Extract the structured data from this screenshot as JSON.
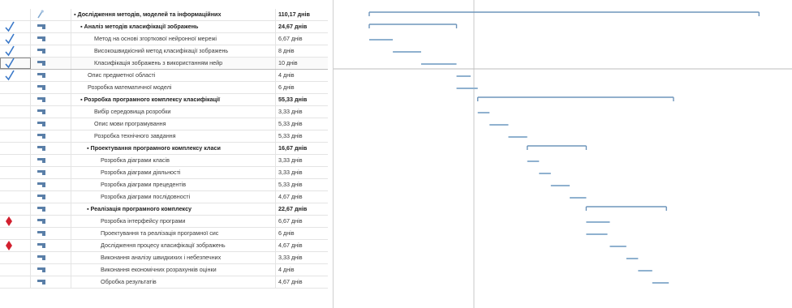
{
  "colors": {
    "bar": "#8fb1cf",
    "summary_bar": "#6e95bb",
    "check": "#3a78c8",
    "alert": "#d2202f",
    "grid": "#e4e4e4",
    "today_line": "#c8c8c8"
  },
  "tasks": [
    {
      "name": "▪ Дослідження методів, моделей та інформаційних",
      "duration": "110,17 днів",
      "level": 0,
      "summary": true,
      "indicator": "",
      "mode": "pin-icon",
      "start": 0,
      "dur": 110.17
    },
    {
      "name": "▪ Аналіз методів класифікації зображень",
      "duration": "24,67 днів",
      "level": 1,
      "summary": true,
      "indicator": "check",
      "mode": "task-icon",
      "start": 0,
      "dur": 24.67
    },
    {
      "name": "Метод на основі згорткової нейронної мережі",
      "duration": "6,67 днів",
      "level": 2,
      "summary": false,
      "indicator": "check",
      "mode": "task-icon",
      "start": 0,
      "dur": 6.67
    },
    {
      "name": "Високошвидкісний метод класифікації зображень",
      "duration": "8 днів",
      "level": 2,
      "summary": false,
      "indicator": "check",
      "mode": "task-icon",
      "start": 6.67,
      "dur": 8
    },
    {
      "name": "Класифікація зображень з використанням нейр",
      "duration": "10 днів",
      "level": 2,
      "summary": false,
      "indicator": "check",
      "mode": "task-icon",
      "start": 14.67,
      "dur": 10,
      "selected": true
    },
    {
      "name": "Опис предметної області",
      "duration": "4 днів",
      "level": 1,
      "summary": false,
      "indicator": "check",
      "mode": "task-icon",
      "start": 24.67,
      "dur": 4
    },
    {
      "name": "Розробка математичної моделі",
      "duration": "6 днів",
      "level": 1,
      "summary": false,
      "indicator": "",
      "mode": "task-icon",
      "start": 24.67,
      "dur": 6
    },
    {
      "name": "▪ Розробка програмного комплексу класифікації",
      "duration": "55,33 днів",
      "level": 1,
      "summary": true,
      "indicator": "",
      "mode": "task-icon",
      "start": 30.67,
      "dur": 55.33
    },
    {
      "name": "Вибір середовища розробки",
      "duration": "3,33 днів",
      "level": 2,
      "summary": false,
      "indicator": "",
      "mode": "task-icon",
      "start": 30.67,
      "dur": 3.33
    },
    {
      "name": "Опис мови програмування",
      "duration": "5,33 днів",
      "level": 2,
      "summary": false,
      "indicator": "",
      "mode": "task-icon",
      "start": 34,
      "dur": 5.33
    },
    {
      "name": "Розробка технічного завдання",
      "duration": "5,33 днів",
      "level": 2,
      "summary": false,
      "indicator": "",
      "mode": "task-icon",
      "start": 39.33,
      "dur": 5.33
    },
    {
      "name": "▪ Проектування програмного комплексу класи",
      "duration": "16,67 днів",
      "level": 2,
      "summary": true,
      "indicator": "",
      "mode": "task-icon",
      "start": 44.67,
      "dur": 16.67
    },
    {
      "name": "Розробка діаграми класів",
      "duration": "3,33 днів",
      "level": 3,
      "summary": false,
      "indicator": "",
      "mode": "task-icon",
      "start": 44.67,
      "dur": 3.33
    },
    {
      "name": "Розробка діаграми діяльності",
      "duration": "3,33 днів",
      "level": 3,
      "summary": false,
      "indicator": "",
      "mode": "task-icon",
      "start": 48,
      "dur": 3.33
    },
    {
      "name": "Розробка діаграми прецедентів",
      "duration": "5,33 днів",
      "level": 3,
      "summary": false,
      "indicator": "",
      "mode": "task-icon",
      "start": 51.33,
      "dur": 5.33
    },
    {
      "name": "Розробка діаграми послідовності",
      "duration": "4,67 днів",
      "level": 3,
      "summary": false,
      "indicator": "",
      "mode": "task-icon",
      "start": 56.67,
      "dur": 4.67
    },
    {
      "name": "▪ Реалізація програмного комплексу",
      "duration": "22,67 днів",
      "level": 2,
      "summary": true,
      "indicator": "",
      "mode": "task-icon",
      "start": 61.33,
      "dur": 22.67
    },
    {
      "name": "Розробка інтерфейсу програми",
      "duration": "6,67 днів",
      "level": 3,
      "summary": false,
      "indicator": "alert",
      "mode": "task-icon",
      "start": 61.33,
      "dur": 6.67
    },
    {
      "name": "Проектування та реалізація програмної сис",
      "duration": "6 днів",
      "level": 3,
      "summary": false,
      "indicator": "",
      "mode": "task-icon",
      "start": 61.33,
      "dur": 6
    },
    {
      "name": "Дослідження процесу класифікації зображень",
      "duration": "4,67 днів",
      "level": 3,
      "summary": false,
      "indicator": "alert",
      "mode": "task-icon",
      "start": 68,
      "dur": 4.67
    },
    {
      "name": "Виконання аналізу швидкихих і небезпечних",
      "duration": "3,33 днів",
      "level": 3,
      "summary": false,
      "indicator": "",
      "mode": "task-icon",
      "start": 72.67,
      "dur": 3.33
    },
    {
      "name": "Виконання економічних розрахунків оцінки",
      "duration": "4 днів",
      "level": 3,
      "summary": false,
      "indicator": "",
      "mode": "task-icon",
      "start": 76,
      "dur": 4
    },
    {
      "name": "Обробка результатів",
      "duration": "4,67 днів",
      "level": 3,
      "summary": false,
      "indicator": "",
      "mode": "task-icon",
      "start": 80,
      "dur": 4.67
    }
  ]
}
